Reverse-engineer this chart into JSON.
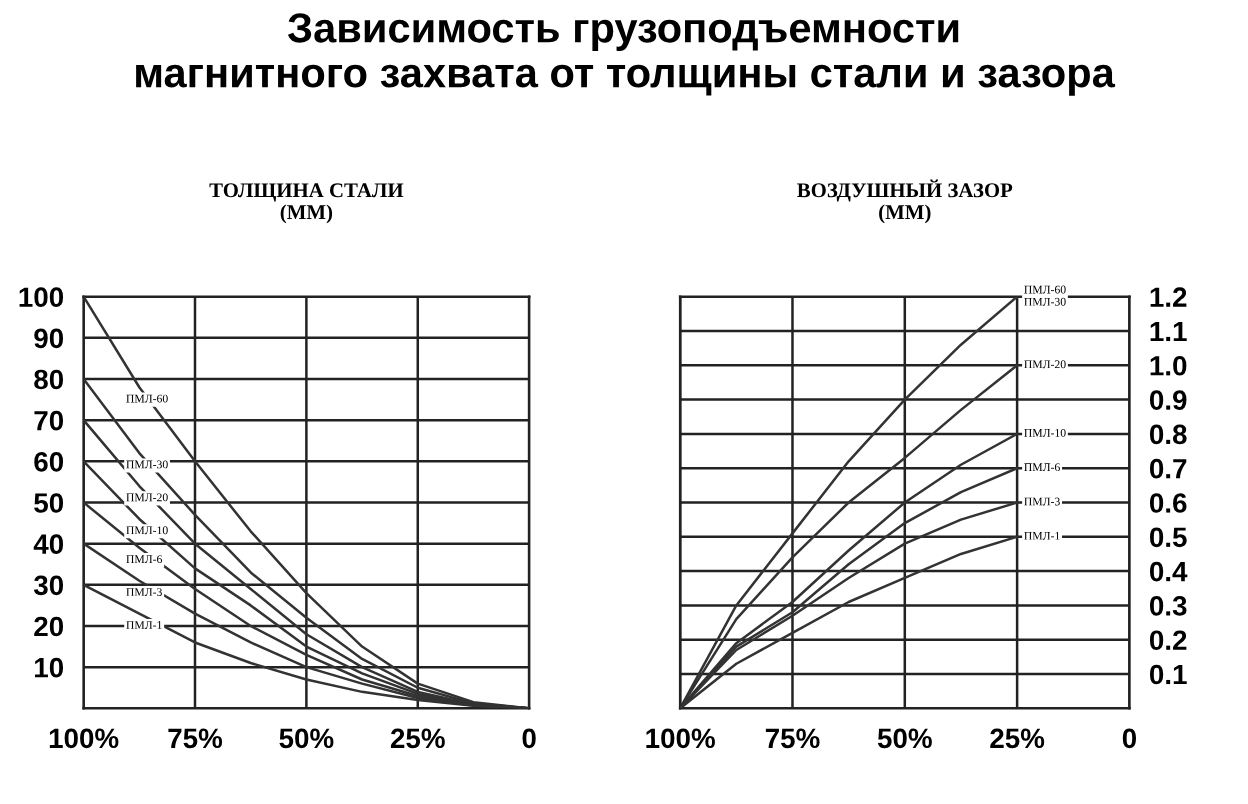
{
  "chart_data": [
    {
      "type": "line",
      "title": "Зависимость грузоподъемности\nмагнитного захвата от толщины стали и зазора",
      "ylabel": "ТОЛЩИНА СТАЛИ\n(ММ)",
      "x": [
        100,
        87.5,
        75,
        62.5,
        50,
        37.5,
        25,
        12.5,
        0
      ],
      "xlim": [
        100,
        0
      ],
      "xticks": [
        {
          "value": 100,
          "label": "100%"
        },
        {
          "value": 75,
          "label": "75%"
        },
        {
          "value": 50,
          "label": "50%"
        },
        {
          "value": 25,
          "label": "25%"
        },
        0
      ],
      "ylim": [
        0,
        100
      ],
      "yticks": [
        10,
        20,
        30,
        40,
        50,
        60,
        70,
        80,
        90,
        100
      ],
      "grid": true,
      "marker": "none",
      "line_style": "solid",
      "series": [
        {
          "name": "ПМЛ-60",
          "color": "#333333",
          "values": [
            100,
            78,
            60,
            43,
            28,
            15,
            6,
            1.5,
            0
          ]
        },
        {
          "name": "ПМЛ-30",
          "color": "#333333",
          "values": [
            80,
            62,
            47,
            33,
            22,
            12,
            5,
            1.2,
            0
          ]
        },
        {
          "name": "ПМЛ-20",
          "color": "#333333",
          "values": [
            70,
            54,
            40,
            29,
            18,
            10,
            4,
            1,
            0
          ]
        },
        {
          "name": "ПМЛ-10",
          "color": "#333333",
          "values": [
            60,
            46,
            34,
            25,
            15,
            8.5,
            3.5,
            1,
            0
          ]
        },
        {
          "name": "ПМЛ-6",
          "color": "#333333",
          "values": [
            50,
            39,
            29,
            20,
            13,
            7,
            3,
            0.8,
            0
          ]
        },
        {
          "name": "ПМЛ-3",
          "color": "#333333",
          "values": [
            40,
            31,
            23,
            16,
            10,
            6,
            2.5,
            0.7,
            0
          ]
        },
        {
          "name": "ПМЛ-1",
          "color": "#333333",
          "values": [
            30,
            23,
            16,
            11,
            7,
            4,
            2,
            0.6,
            0
          ]
        }
      ]
    },
    {
      "type": "line",
      "ylabel": "ВОЗДУШНЫЙ ЗАЗОР\n(ММ)",
      "x": [
        100,
        87.5,
        75,
        62.5,
        50,
        37.5,
        25
      ],
      "xlim": [
        100,
        0
      ],
      "xticks": [
        {
          "value": 100,
          "label": "100%"
        },
        {
          "value": 75,
          "label": "75%"
        },
        {
          "value": 50,
          "label": "50%"
        },
        {
          "value": 25,
          "label": "25%"
        },
        0
      ],
      "ylim": [
        0,
        1.2
      ],
      "yticks": [
        0.1,
        0.2,
        0.3,
        0.4,
        0.5,
        0.6,
        0.7,
        0.8,
        0.9,
        {
          "value": 1.0,
          "label": "1.0"
        },
        1.1,
        1.2
      ],
      "grid": true,
      "marker": "none",
      "line_style": "solid",
      "series": [
        {
          "name": "ПМЛ-60\nПМЛ-30",
          "color": "#333333",
          "values": [
            0,
            0.3,
            0.51,
            0.72,
            0.9,
            1.06,
            1.2
          ]
        },
        {
          "name": "ПМЛ-20",
          "color": "#333333",
          "values": [
            0,
            0.26,
            0.44,
            0.6,
            0.73,
            0.87,
            1.0
          ]
        },
        {
          "name": "ПМЛ-10",
          "color": "#333333",
          "values": [
            0,
            0.19,
            0.31,
            0.46,
            0.6,
            0.71,
            0.8
          ]
        },
        {
          "name": "ПМЛ-6",
          "color": "#333333",
          "values": [
            0,
            0.18,
            0.28,
            0.42,
            0.54,
            0.63,
            0.7
          ]
        },
        {
          "name": "ПМЛ-3",
          "color": "#333333",
          "values": [
            0,
            0.17,
            0.27,
            0.38,
            0.48,
            0.55,
            0.6
          ]
        },
        {
          "name": "ПМЛ-1",
          "color": "#333333",
          "values": [
            0,
            0.13,
            0.22,
            0.31,
            0.38,
            0.45,
            0.5
          ]
        }
      ]
    }
  ]
}
